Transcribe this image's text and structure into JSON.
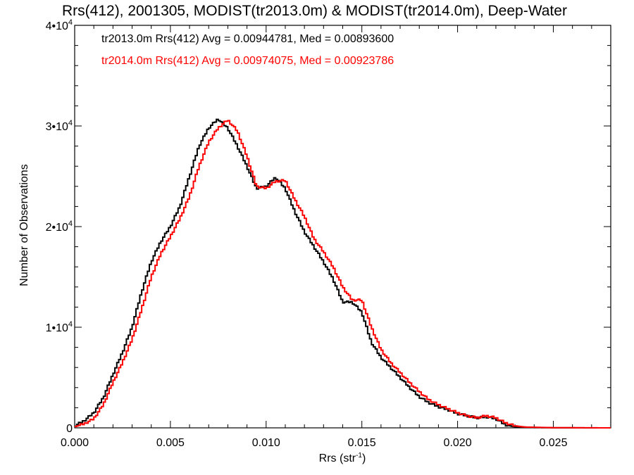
{
  "chart_data": {
    "type": "line",
    "title": "Rrs(412), 2001305, MODIST(tr2013.0m) & MODIST(tr2014.0m), Deep-Water",
    "xlabel": "Rrs (str",
    "xlabel_sup": "-1",
    "xlabel_close": ")",
    "ylabel": "Number of Observations",
    "xlim": [
      0,
      0.028
    ],
    "ylim": [
      0,
      40000
    ],
    "x_ticks": [
      0,
      0.005,
      0.01,
      0.015,
      0.02,
      0.025
    ],
    "x_tick_labels": [
      "0.000",
      "0.005",
      "0.010",
      "0.015",
      "0.020",
      "0.025"
    ],
    "y_ticks": [
      0,
      10000,
      20000,
      30000,
      40000
    ],
    "y_tick_labels": [
      {
        "base": "0",
        "exp": ""
      },
      {
        "base": "1•10",
        "exp": "4"
      },
      {
        "base": "2•10",
        "exp": "4"
      },
      {
        "base": "3•10",
        "exp": "4"
      },
      {
        "base": "4•10",
        "exp": "4"
      }
    ],
    "series": [
      {
        "color": "#000000",
        "annotation": "tr2013.0m Rrs(412) Avg = 0.00944781, Med = 0.00893600",
        "points": [
          [
            0.0,
            200
          ],
          [
            0.0005,
            700
          ],
          [
            0.001,
            1500
          ],
          [
            0.0015,
            3000
          ],
          [
            0.002,
            5300
          ],
          [
            0.0025,
            7500
          ],
          [
            0.003,
            10000
          ],
          [
            0.0035,
            13500
          ],
          [
            0.004,
            16500
          ],
          [
            0.0045,
            18500
          ],
          [
            0.005,
            20000
          ],
          [
            0.0055,
            22000
          ],
          [
            0.006,
            25000
          ],
          [
            0.0065,
            28000
          ],
          [
            0.007,
            29800
          ],
          [
            0.0075,
            30700
          ],
          [
            0.008,
            29800
          ],
          [
            0.0085,
            28000
          ],
          [
            0.009,
            26000
          ],
          [
            0.0095,
            23800
          ],
          [
            0.01,
            24000
          ],
          [
            0.0105,
            24900
          ],
          [
            0.011,
            23800
          ],
          [
            0.0115,
            21500
          ],
          [
            0.012,
            19500
          ],
          [
            0.0125,
            18000
          ],
          [
            0.013,
            16500
          ],
          [
            0.0135,
            14800
          ],
          [
            0.014,
            12500
          ],
          [
            0.0145,
            12500
          ],
          [
            0.015,
            11500
          ],
          [
            0.0155,
            8500
          ],
          [
            0.016,
            7000
          ],
          [
            0.0165,
            6000
          ],
          [
            0.017,
            5000
          ],
          [
            0.0175,
            4000
          ],
          [
            0.018,
            3100
          ],
          [
            0.0185,
            2500
          ],
          [
            0.019,
            2100
          ],
          [
            0.0195,
            1800
          ],
          [
            0.02,
            1400
          ],
          [
            0.0205,
            1200
          ],
          [
            0.021,
            1000
          ],
          [
            0.0215,
            1100
          ],
          [
            0.022,
            900
          ],
          [
            0.0225,
            300
          ],
          [
            0.023,
            100
          ],
          [
            0.024,
            30
          ],
          [
            0.025,
            10
          ],
          [
            0.028,
            0
          ]
        ]
      },
      {
        "color": "#ff0000",
        "annotation": "tr2014.0m Rrs(412) Avg = 0.00974075, Med = 0.00923786",
        "points": [
          [
            0.0,
            100
          ],
          [
            0.0005,
            400
          ],
          [
            0.001,
            900
          ],
          [
            0.0015,
            2300
          ],
          [
            0.002,
            4500
          ],
          [
            0.0025,
            6500
          ],
          [
            0.003,
            8800
          ],
          [
            0.0035,
            11800
          ],
          [
            0.004,
            15000
          ],
          [
            0.0045,
            17300
          ],
          [
            0.005,
            19000
          ],
          [
            0.0055,
            20800
          ],
          [
            0.006,
            23000
          ],
          [
            0.0065,
            26000
          ],
          [
            0.007,
            28400
          ],
          [
            0.0075,
            29800
          ],
          [
            0.008,
            30600
          ],
          [
            0.0085,
            29500
          ],
          [
            0.009,
            27000
          ],
          [
            0.0095,
            24000
          ],
          [
            0.01,
            23800
          ],
          [
            0.0105,
            24500
          ],
          [
            0.011,
            24600
          ],
          [
            0.0115,
            22700
          ],
          [
            0.012,
            21000
          ],
          [
            0.0125,
            18800
          ],
          [
            0.013,
            17500
          ],
          [
            0.0135,
            16000
          ],
          [
            0.014,
            14000
          ],
          [
            0.0145,
            12700
          ],
          [
            0.015,
            12700
          ],
          [
            0.0155,
            10000
          ],
          [
            0.016,
            7800
          ],
          [
            0.0165,
            6500
          ],
          [
            0.017,
            5500
          ],
          [
            0.0175,
            4500
          ],
          [
            0.018,
            3600
          ],
          [
            0.0185,
            2800
          ],
          [
            0.019,
            2300
          ],
          [
            0.0195,
            1900
          ],
          [
            0.02,
            1500
          ],
          [
            0.0205,
            1200
          ],
          [
            0.021,
            1000
          ],
          [
            0.0215,
            1200
          ],
          [
            0.022,
            1000
          ],
          [
            0.0225,
            500
          ],
          [
            0.023,
            200
          ],
          [
            0.0235,
            80
          ],
          [
            0.025,
            20
          ],
          [
            0.028,
            0
          ]
        ]
      }
    ],
    "grid": false
  }
}
